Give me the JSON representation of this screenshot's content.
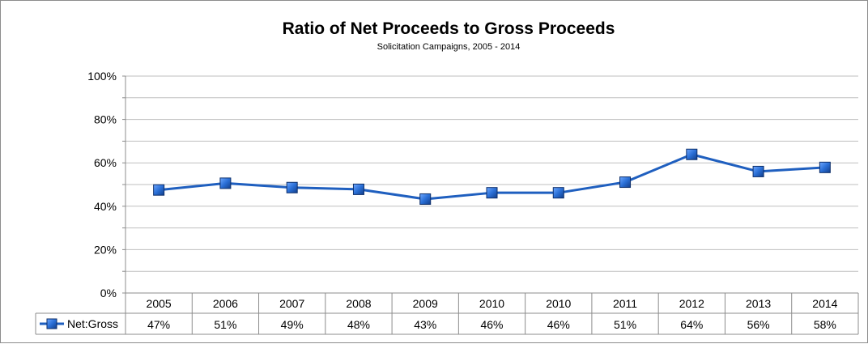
{
  "chart_data": {
    "type": "line",
    "title": "Ratio of Net Proceeds to Gross Proceeds",
    "subtitle": "Solicitation Campaigns, 2005 - 2014",
    "categories": [
      "2005",
      "2006",
      "2007",
      "2008",
      "2009",
      "2010",
      "2010",
      "2011",
      "2012",
      "2013",
      "2014"
    ],
    "series": [
      {
        "name": "Net:Gross",
        "values": [
          47.5,
          50.6,
          48.6,
          47.8,
          43.3,
          46.2,
          46.2,
          51.1,
          63.9,
          56.0,
          57.9
        ],
        "labels": [
          "47%",
          "51%",
          "49%",
          "48%",
          "43%",
          "46%",
          "46%",
          "51%",
          "64%",
          "56%",
          "58%"
        ],
        "color": "#1f5fbf"
      }
    ],
    "ylim": [
      0,
      100
    ],
    "yticks": [
      "0%",
      "20%",
      "40%",
      "60%",
      "80%",
      "100%"
    ],
    "ytick_values": [
      0,
      20,
      40,
      60,
      80,
      100
    ],
    "grid": true,
    "data_table": true,
    "legend": "data-table-left"
  }
}
